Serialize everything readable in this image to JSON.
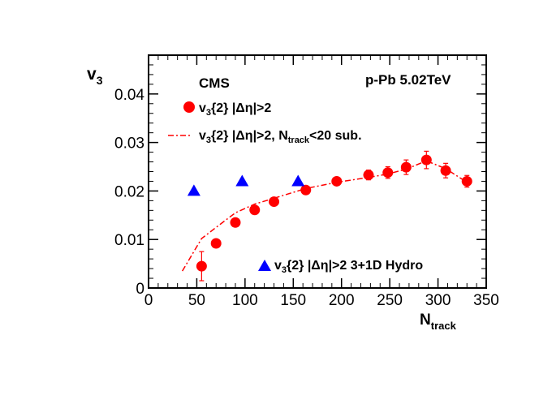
{
  "chart_data": {
    "type": "scatter",
    "experiment": "CMS",
    "system": "p-Pb 5.02TeV",
    "xlabel": {
      "main": "N",
      "sub": "track"
    },
    "ylabel": {
      "main": "v",
      "sub": "3"
    },
    "xlim": [
      0,
      350
    ],
    "ylim": [
      0,
      0.048
    ],
    "xticks": [
      0,
      50,
      100,
      150,
      200,
      250,
      300,
      350
    ],
    "yticks": [
      0,
      0.01,
      0.02,
      0.03,
      0.04
    ],
    "ytick_labels": [
      "0",
      "0.01",
      "0.02",
      "0.03",
      "0.04"
    ],
    "series": [
      {
        "name": "v3{2} |Δη|>2",
        "legend": {
          "pre": "v",
          "sub": "3",
          "post": "{2}  |Δη|>2"
        },
        "marker": "circle",
        "color": "#ff0000",
        "x": [
          55,
          70,
          90,
          110,
          130,
          163,
          195,
          228,
          248,
          267,
          288,
          308,
          330
        ],
        "y": [
          0.0045,
          0.0092,
          0.0135,
          0.0161,
          0.0178,
          0.0202,
          0.022,
          0.0233,
          0.0238,
          0.0249,
          0.0264,
          0.0242,
          0.022
        ],
        "yerr": [
          0.003,
          0.0007,
          0.0007,
          0.0007,
          0.0007,
          0.0007,
          0.0008,
          0.001,
          0.0012,
          0.0015,
          0.0018,
          0.0015,
          0.0012
        ]
      },
      {
        "name": "v3{2} |Δη|>2, Ntrack<20 sub.",
        "legend": {
          "pre": "v",
          "sub": "3",
          "post": "{2}  |Δη|>2, N",
          "sub2": "track",
          "post2": "<20  sub."
        },
        "marker": "dash-dot-line",
        "color": "#ff0000",
        "x": [
          35,
          55,
          70,
          90,
          110,
          130,
          163,
          195,
          228,
          248,
          267,
          288,
          308,
          330
        ],
        "y": [
          0.0035,
          0.0102,
          0.0125,
          0.0155,
          0.0173,
          0.0185,
          0.0205,
          0.0218,
          0.0228,
          0.0235,
          0.0245,
          0.0262,
          0.0246,
          0.0218
        ]
      },
      {
        "name": "v3{2} |Δη|>2 3+1D Hydro",
        "legend": {
          "pre": "v",
          "sub": "3",
          "post": "{2}  |Δη|>2   3+1D Hydro"
        },
        "marker": "triangle",
        "color": "#0000ff",
        "x": [
          47,
          97,
          155
        ],
        "y": [
          0.02,
          0.022,
          0.022
        ]
      }
    ]
  }
}
